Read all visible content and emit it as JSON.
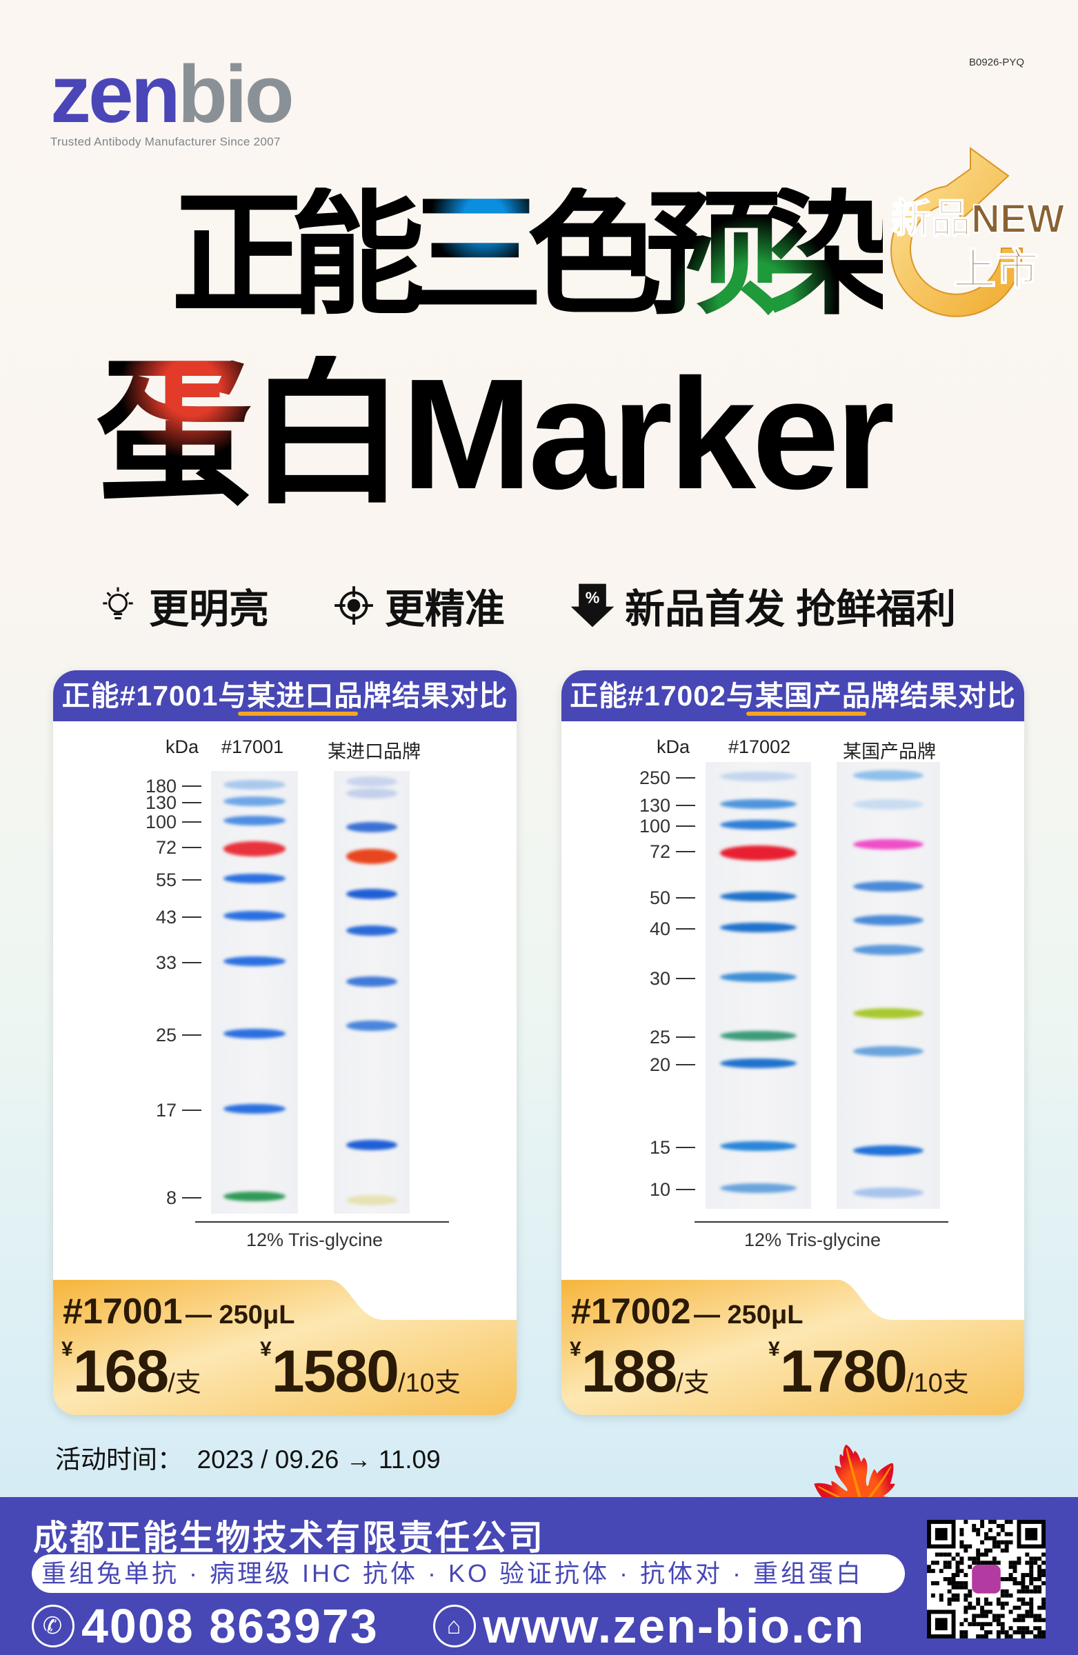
{
  "brand": {
    "logo_left": "zen",
    "logo_right": "bio",
    "tagline": "Trusted Antibody Manufacturer Since 2007",
    "code": "B0926-PYQ"
  },
  "headline": {
    "line1": "正能三色预染",
    "line2": "蛋白Marker",
    "badge_line1": "新品NEW",
    "badge_line2": "上市"
  },
  "features": [
    {
      "icon": "lightbulb-icon",
      "label": "更明亮"
    },
    {
      "icon": "crosshair-icon",
      "label": "更精准"
    },
    {
      "icon": "discount-tag-icon",
      "label": "新品首发 抢鲜福利"
    }
  ],
  "colors": {
    "primary": "#4747b5",
    "accent": "#f5a623",
    "price_gold": "#f6b53c",
    "red_band": "#e8323c",
    "blue_band": "#2a6fe0",
    "green_band": "#2f9a55"
  },
  "cards": [
    {
      "title": "正能#17001与某进口品牌结果对比",
      "col_kda": "kDa",
      "col_lane1": "#17001",
      "col_lane2": "某进口品牌",
      "markers": [
        "180",
        "130",
        "100",
        "72",
        "55",
        "43",
        "33",
        "25",
        "17",
        "8"
      ],
      "lane1_band_colors": [
        "#a9c9ec",
        "#6fa6e6",
        "#4e8de2",
        "#e8323c",
        "#2a6fe0",
        "#2a6fe0",
        "#2a6fe0",
        "#2a6fe0",
        "#2a6fe0",
        "#2f9a55"
      ],
      "lane2_band_colors": [
        "#c9d4ee",
        "#c4d0ec",
        "#3a72d4",
        "#e8461e",
        "#1f5fd6",
        "#2a6ad8",
        "#3f7ad8",
        "#4a86dc",
        "#1f5fd6",
        "#e6e2b4"
      ],
      "caption": "12% Tris-glycine",
      "product": "#17001",
      "size": "— 250μL",
      "currency": "¥",
      "price_single": "168",
      "unit_single": "/支",
      "price_pack": "1580",
      "unit_pack": "/10支"
    },
    {
      "title": "正能#17002与某国产品牌结果对比",
      "col_kda": "kDa",
      "col_lane1": "#17002",
      "col_lane2": "某国产品牌",
      "markers": [
        "250",
        "130",
        "100",
        "72",
        "50",
        "40",
        "30",
        "25",
        "20",
        "15",
        "10"
      ],
      "lane1_band_colors": [
        "#c3d6ee",
        "#4f95dc",
        "#2f7fd6",
        "#e81f30",
        "#1f72cc",
        "#1f72cc",
        "#3d8fd8",
        "#3d9b7a",
        "#1f72cc",
        "#2a86d8",
        "#6aa4dc"
      ],
      "lane2_band_colors": [
        "#8fc0ec",
        "#c8dcf2",
        "#ee4ec8",
        "#4a8ad8",
        "#4a8ad8",
        "#5a98dc",
        "#a8c82e",
        "#6aa4dc",
        "#2272d8",
        "#a9c4ec"
      ],
      "caption": "12% Tris-glycine",
      "product": "#17002",
      "size": "— 250μL",
      "currency": "¥",
      "price_single": "188",
      "unit_single": "/支",
      "price_pack": "1780",
      "unit_pack": "/10支"
    }
  ],
  "activity": {
    "label": "活动时间：",
    "dates": "2023 / 09.26 → 11.09"
  },
  "footer": {
    "company": "成都正能生物技术有限责任公司",
    "services": "重组兔单抗 · 病理级 IHC 抗体 · KO 验证抗体 · 抗体对 · 重组蛋白",
    "phone": "4008 863973",
    "website": "www.zen-bio.cn",
    "phone_icon": "phone-icon",
    "web_icon": "home-icon",
    "qr": "qr-code"
  }
}
